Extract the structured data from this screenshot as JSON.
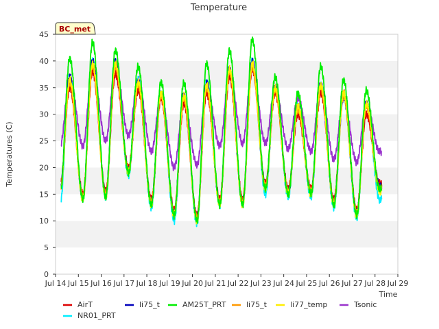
{
  "chart_data": {
    "type": "line",
    "title": "Temperature",
    "xlabel": "Time",
    "ylabel": "Temperatures (C)",
    "ylim": [
      0,
      45
    ],
    "xlim": [
      14,
      29
    ],
    "yticks": [
      0,
      5,
      10,
      15,
      20,
      25,
      30,
      35,
      40,
      45
    ],
    "xticks": [
      {
        "v": 14,
        "label": "Jul 14"
      },
      {
        "v": 15,
        "label": "Jul 15"
      },
      {
        "v": 16,
        "label": "Jul 16"
      },
      {
        "v": 17,
        "label": "Jul 17"
      },
      {
        "v": 18,
        "label": "Jul 18"
      },
      {
        "v": 19,
        "label": "Jul 19"
      },
      {
        "v": 20,
        "label": "Jul 20"
      },
      {
        "v": 21,
        "label": "Jul 21"
      },
      {
        "v": 22,
        "label": "Jul 22"
      },
      {
        "v": 23,
        "label": "Jul 23"
      },
      {
        "v": 24,
        "label": "Jul 24"
      },
      {
        "v": 25,
        "label": "Jul 25"
      },
      {
        "v": 26,
        "label": "Jul 26"
      },
      {
        "v": 27,
        "label": "Jul 27"
      },
      {
        "v": 28,
        "label": "Jul 28"
      },
      {
        "v": 29,
        "label": "Jul 29"
      }
    ],
    "grid_bands": true,
    "badge": "BC_met",
    "legend_position": "bottom",
    "days": [
      14,
      15,
      16,
      17,
      18,
      19,
      20,
      21,
      22,
      23,
      24,
      25,
      26,
      27,
      28
    ],
    "series": [
      {
        "name": "AirT",
        "color": "#dd0000",
        "mins": [
          16.5,
          15,
          15.5,
          20,
          14,
          12,
          11,
          14,
          14,
          17,
          16,
          16,
          14,
          12,
          17
        ],
        "maxs": [
          35,
          38,
          37.5,
          34.5,
          33,
          32,
          34,
          37,
          38.5,
          34,
          30,
          34,
          34,
          30
        ]
      },
      {
        "name": "li75_t",
        "color": "#0000bb",
        "mins": [
          16,
          14.5,
          15,
          19.5,
          13.5,
          11.5,
          10.5,
          13.5,
          13.5,
          16.5,
          15.5,
          15.5,
          13.5,
          11.5,
          16.5
        ],
        "maxs": [
          37,
          40,
          40,
          36,
          34,
          33.5,
          36,
          38.5,
          40,
          35,
          31.5,
          35.5,
          33.5,
          32
        ]
      },
      {
        "name": "AM25T_PRT",
        "color": "#00ee00",
        "mins": [
          15,
          14,
          14.5,
          19,
          13,
          11,
          10,
          13,
          13,
          16,
          15,
          15,
          13,
          11,
          16
        ],
        "maxs": [
          40.5,
          43.5,
          42,
          39,
          36,
          36,
          39.5,
          42,
          44,
          37,
          34,
          39,
          36.5,
          34.5
        ]
      },
      {
        "name": "li75_t",
        "color": "#ff9900",
        "mins": [
          15.5,
          14.5,
          15,
          19.5,
          13.5,
          11.5,
          10.5,
          13.5,
          13.5,
          16.5,
          15.5,
          15.5,
          13.5,
          11.5,
          16
        ],
        "maxs": [
          36,
          39,
          39,
          35.5,
          33.5,
          33,
          35,
          38,
          39,
          34.5,
          31,
          35,
          33.5,
          31.5
        ]
      },
      {
        "name": "li77_temp",
        "color": "#ffee00",
        "mins": [
          15,
          14,
          14.5,
          19,
          13,
          11,
          10,
          13,
          13,
          16,
          15,
          15,
          13,
          11,
          15.5
        ],
        "maxs": [
          36.5,
          39.5,
          39.5,
          36,
          34,
          33.5,
          35.5,
          38.5,
          39.5,
          35,
          31.5,
          35.5,
          34,
          32
        ]
      },
      {
        "name": "Tsonic",
        "color": "#9933cc",
        "mins": [
          24,
          24,
          25,
          26,
          23,
          20,
          20.5,
          24,
          24.5,
          24.5,
          23.5,
          23,
          21.5,
          21,
          23
        ],
        "maxs": [
          37,
          39,
          39,
          36.5,
          33.5,
          32.5,
          35.5,
          38,
          39,
          35,
          33,
          35.5,
          33,
          32
        ]
      },
      {
        "name": "NR01_PRT",
        "color": "#00eeff",
        "mins": [
          13,
          14,
          14.5,
          18.5,
          12.5,
          10,
          9.5,
          13,
          13,
          15,
          14.5,
          14.5,
          12.5,
          10.5,
          14
        ],
        "maxs": [
          37,
          40,
          40,
          36.5,
          34,
          33.5,
          36,
          38.5,
          40,
          35,
          31.5,
          35.5,
          33.5,
          32
        ]
      }
    ],
    "legend": {
      "row1": [
        {
          "label": "AirT",
          "color": "#dd0000"
        },
        {
          "label": "li75_t",
          "color": "#0000bb"
        },
        {
          "label": "AM25T_PRT",
          "color": "#00ee00"
        },
        {
          "label": "li75_t",
          "color": "#ff9900"
        },
        {
          "label": "li77_temp",
          "color": "#ffee00"
        },
        {
          "label": "Tsonic",
          "color": "#9933cc"
        }
      ],
      "row2": [
        {
          "label": "NR01_PRT",
          "color": "#00eeff"
        }
      ]
    }
  }
}
